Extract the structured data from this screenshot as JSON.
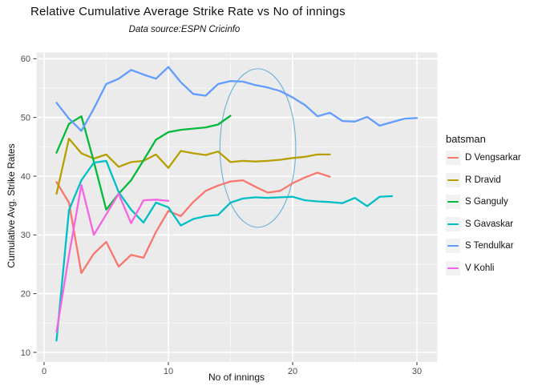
{
  "title": "Relative Cumulative Average Strike Rate vs No of innings",
  "subtitle": "Data source:ESPN Cricinfo",
  "legend": {
    "title": "batsman",
    "position": "right"
  },
  "colors": {
    "panel_background": "#EBEBEB",
    "gridline": "#FFFFFF",
    "tick_text": "#4D4D4D",
    "axis_tick_mark": "#333333",
    "legend_key_background": "#F2F2F2",
    "annotation_ellipse": "#74B4D9"
  },
  "chart_data": {
    "type": "line",
    "title": "Relative Cumulative Average Strike Rate vs No of innings",
    "subtitle": "Data source:ESPN Cricinfo",
    "xlabel": "No of innings",
    "ylabel": "Cumulative Avg. Strike Rates",
    "xlim": [
      -0.65,
      31.6
    ],
    "ylim": [
      8.4,
      61.2
    ],
    "x_axis": {
      "title": "No of innings",
      "ticks": [
        0,
        10,
        20,
        30
      ],
      "minor": [
        5,
        15,
        25
      ]
    },
    "y_axis": {
      "title": "Cumulative Avg. Strike Rates",
      "ticks": [
        10,
        20,
        30,
        40,
        50,
        60
      ],
      "minor": [
        15,
        25,
        35,
        45,
        55
      ]
    },
    "grid": "major-and-minor-white-on-gray",
    "legend_position": "right",
    "x_start_inning": 1,
    "series": [
      {
        "name": "D Vengsarkar",
        "color": "#F8766D",
        "values": [
          39.0,
          35.5,
          23.5,
          26.8,
          28.8,
          24.6,
          26.6,
          26.1,
          30.5,
          34.1,
          33.2,
          35.6,
          37.5,
          38.4,
          39.1,
          39.3,
          38.2,
          37.2,
          37.5,
          38.8,
          39.8,
          40.6,
          39.9
        ]
      },
      {
        "name": "R Dravid",
        "color": "#B79F00",
        "values": [
          37.0,
          46.4,
          43.9,
          43.0,
          43.7,
          41.6,
          42.4,
          42.6,
          43.7,
          41.4,
          44.3,
          43.9,
          43.6,
          44.2,
          42.4,
          42.6,
          42.5,
          42.6,
          42.8,
          43.1,
          43.3,
          43.7,
          43.7
        ]
      },
      {
        "name": "S Ganguly",
        "color": "#00BA38",
        "values": [
          44.0,
          48.9,
          50.2,
          42.5,
          34.3,
          37.0,
          39.3,
          42.7,
          46.2,
          47.5,
          47.9,
          48.1,
          48.3,
          48.8,
          50.3
        ]
      },
      {
        "name": "S Gavaskar",
        "color": "#00BFC4",
        "values": [
          12.0,
          34.2,
          39.3,
          42.3,
          42.6,
          37.3,
          34.3,
          32.1,
          35.5,
          34.7,
          31.6,
          32.7,
          33.2,
          33.4,
          35.5,
          36.2,
          36.4,
          36.3,
          36.4,
          36.5,
          35.9,
          35.7,
          35.6,
          35.4,
          36.3,
          34.9,
          36.5,
          36.6
        ]
      },
      {
        "name": "S Tendulkar",
        "color": "#619CFF",
        "values": [
          52.5,
          49.8,
          47.7,
          51.5,
          55.7,
          56.6,
          58.1,
          57.3,
          56.6,
          58.6,
          56.0,
          54.0,
          53.7,
          55.7,
          56.2,
          56.1,
          55.5,
          55.1,
          54.5,
          53.4,
          52.1,
          50.2,
          50.8,
          49.4,
          49.3,
          50.1,
          48.6,
          49.2,
          49.8,
          49.9
        ]
      },
      {
        "name": "V Kohli",
        "color": "#F564E2",
        "values": [
          13.5,
          26.5,
          38.5,
          30.0,
          33.5,
          37.0,
          32.0,
          35.9,
          36.0,
          35.8
        ]
      }
    ],
    "annotation_ellipse": {
      "x_center": 17.2,
      "y_center": 44.8,
      "x_radius": 3.05,
      "y_radius": 13.5,
      "color": "#74B4D9",
      "fill": "none"
    }
  }
}
